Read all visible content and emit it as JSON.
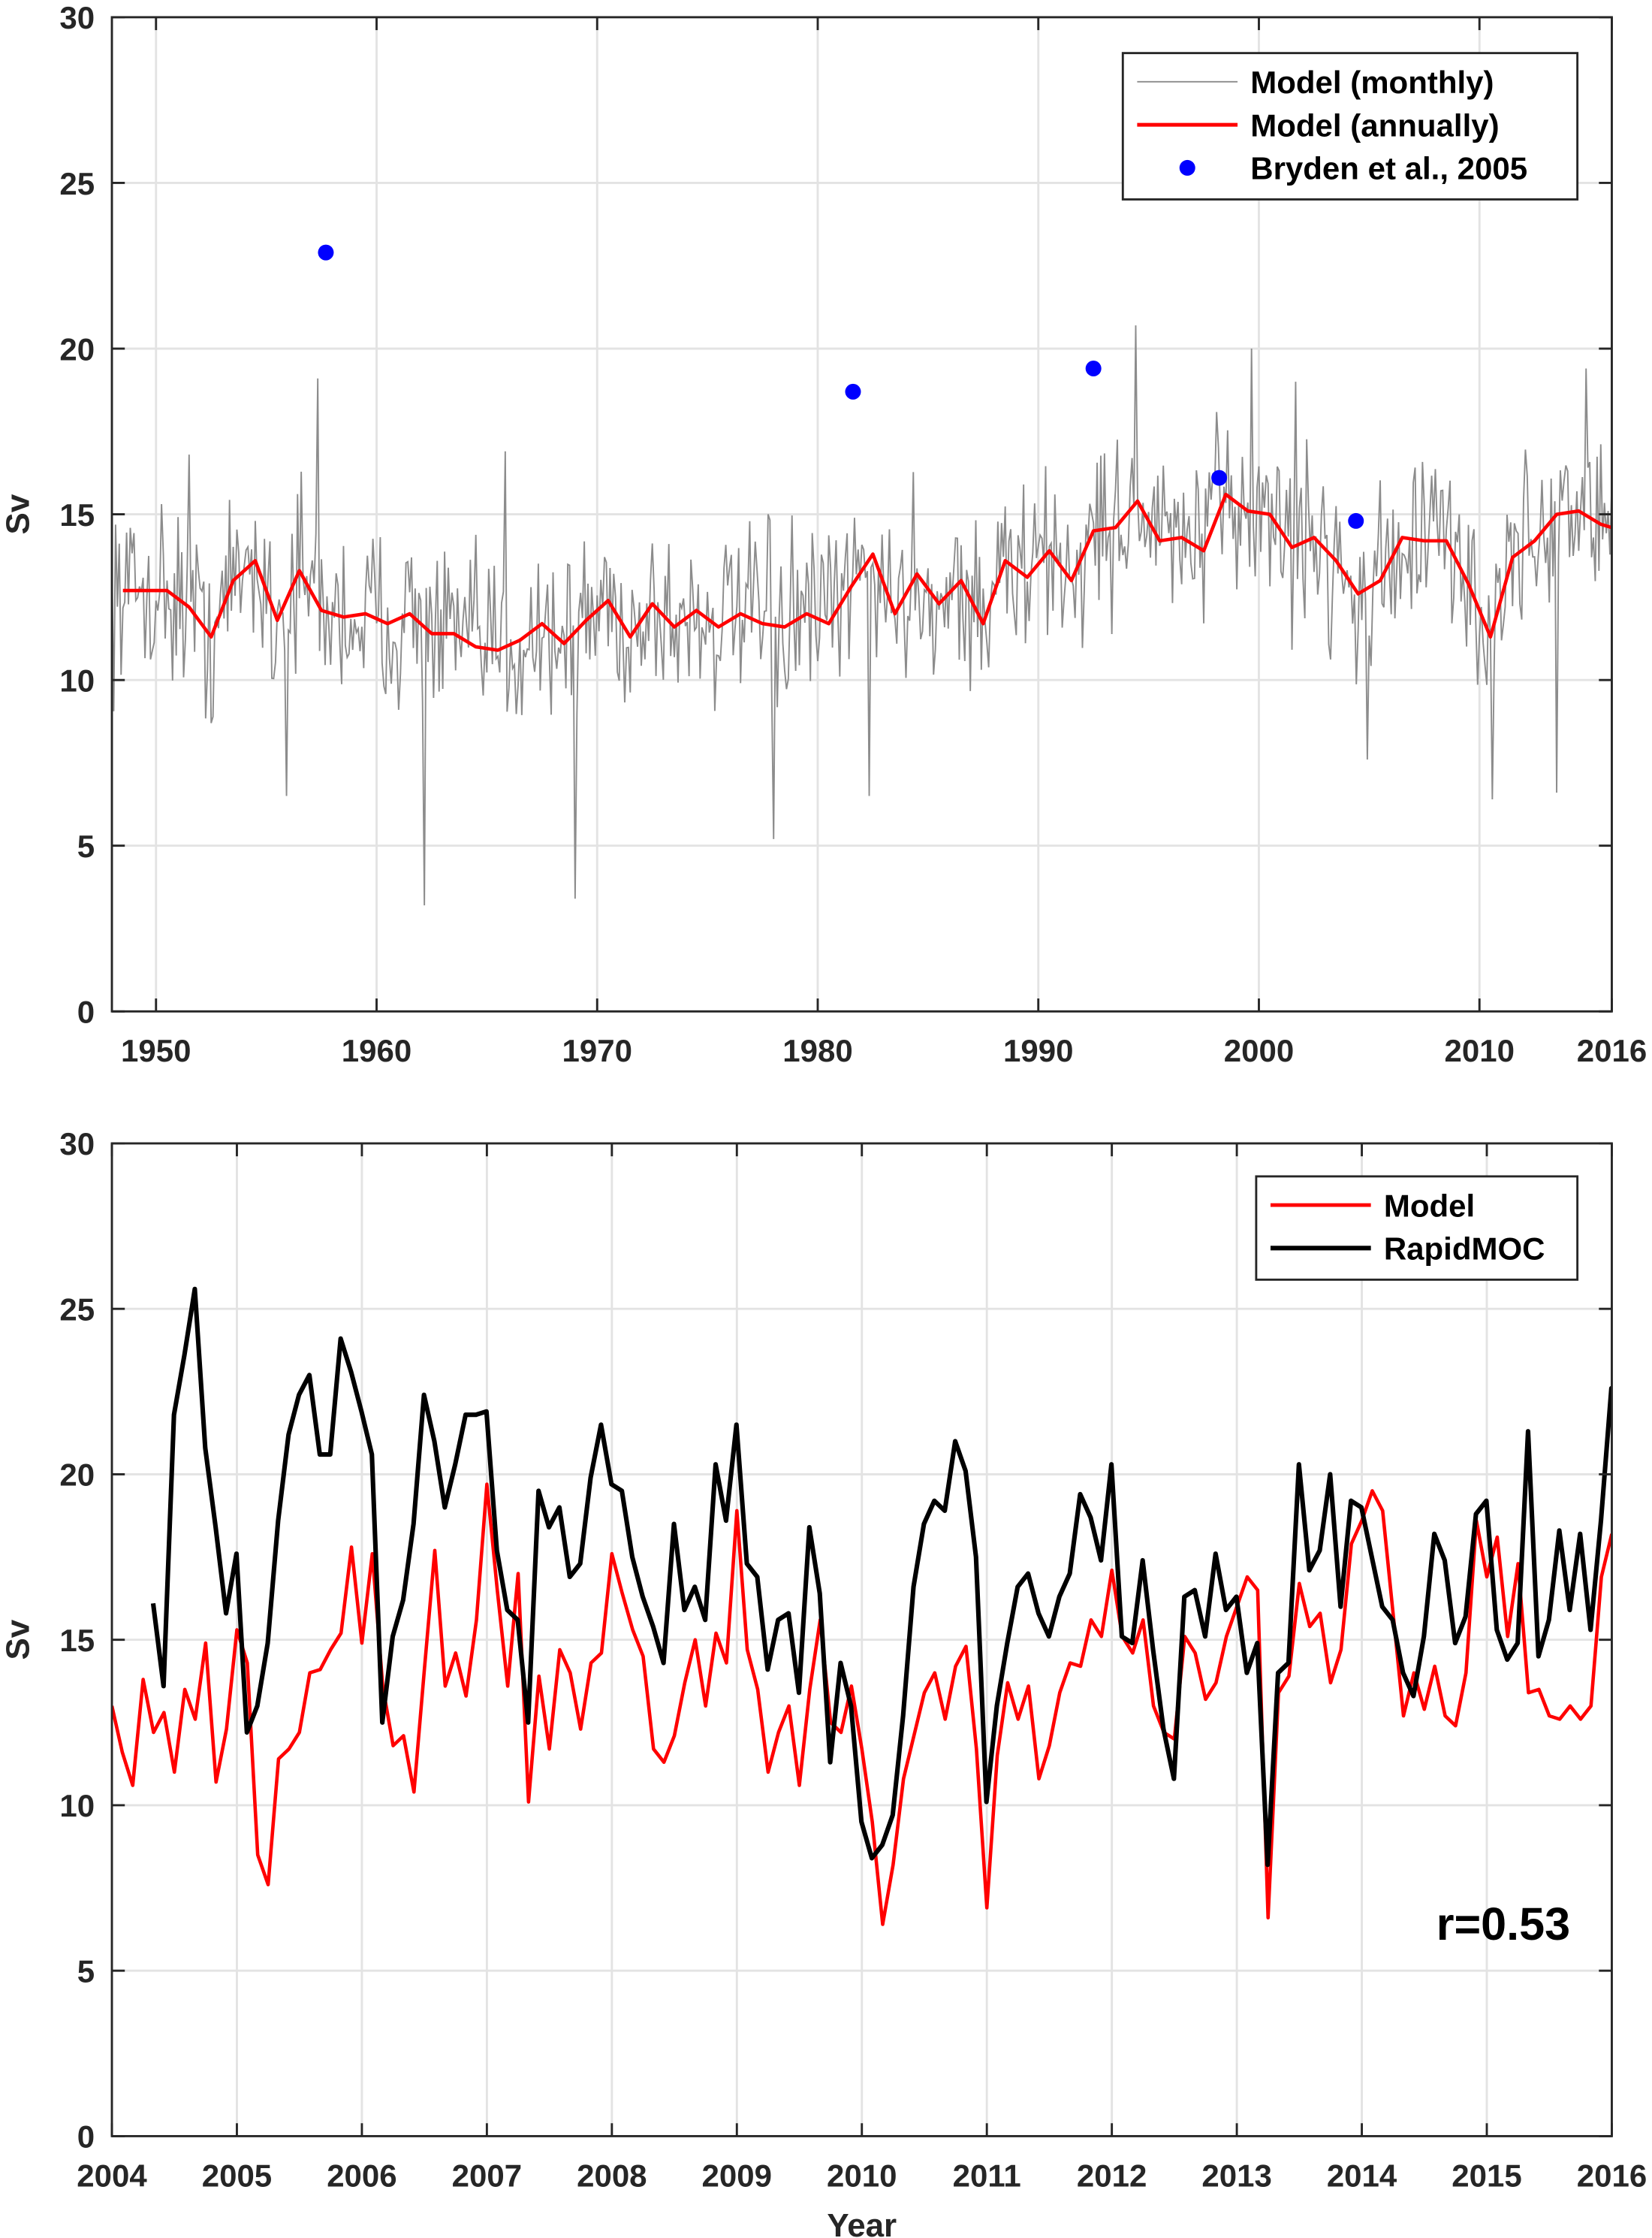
{
  "chart_data": [
    {
      "type": "line",
      "ylabel": "Sv",
      "xlabel": "",
      "xlim": [
        1948,
        2016
      ],
      "ylim": [
        0,
        30
      ],
      "grid": true,
      "xticks": [
        1950,
        1960,
        1970,
        1980,
        1990,
        2000,
        2010,
        2016
      ],
      "xtick_labels": [
        "1950",
        "1960",
        "1970",
        "1980",
        "1990",
        "2000",
        "2010",
        "2016"
      ],
      "yticks": [
        0,
        5,
        10,
        15,
        20,
        25,
        30
      ],
      "ytick_labels": [
        "0",
        "5",
        "10",
        "15",
        "20",
        "25",
        "30"
      ],
      "legend_position": "top-right",
      "series": [
        {
          "name": "Model (monthly)",
          "kind": "line",
          "color": "#8c8c8c",
          "note_values": "monthly variability around annual mean; notable extremes listed",
          "extremes": [
            [
              1957.3,
              19.1
            ],
            [
              1962.2,
              3.2
            ],
            [
              1969.0,
              3.4
            ],
            [
              1978.0,
              5.2
            ],
            [
              1982.3,
              6.5
            ],
            [
              1994.4,
              20.7
            ],
            [
              1999.7,
              20.0
            ],
            [
              2001.7,
              19.0
            ],
            [
              2004.9,
              7.6
            ],
            [
              2010.6,
              6.4
            ],
            [
              2013.5,
              6.6
            ],
            [
              2014.8,
              19.4
            ],
            [
              1965.8,
              16.9
            ],
            [
              1955.9,
              6.5
            ],
            [
              1951.5,
              16.8
            ]
          ]
        },
        {
          "name": "Model (annually)",
          "kind": "line",
          "color": "#ff0000",
          "x": [
            1948.5,
            1949.5,
            1950.5,
            1951.5,
            1952.5,
            1953.5,
            1954.5,
            1955.5,
            1956.5,
            1957.5,
            1958.5,
            1959.5,
            1960.5,
            1961.5,
            1962.5,
            1963.5,
            1964.5,
            1965.5,
            1966.5,
            1967.5,
            1968.5,
            1969.5,
            1970.5,
            1971.5,
            1972.5,
            1973.5,
            1974.5,
            1975.5,
            1976.5,
            1977.5,
            1978.5,
            1979.5,
            1980.5,
            1981.5,
            1982.5,
            1983.5,
            1984.5,
            1985.5,
            1986.5,
            1987.5,
            1988.5,
            1989.5,
            1990.5,
            1991.5,
            1992.5,
            1993.5,
            1994.5,
            1995.5,
            1996.5,
            1997.5,
            1998.5,
            1999.5,
            2000.5,
            2001.5,
            2002.5,
            2003.5,
            2004.5,
            2005.5,
            2006.5,
            2007.5,
            2008.5,
            2009.5,
            2010.5,
            2011.5,
            2012.5,
            2013.5,
            2014.5,
            2015.5,
            2016.0
          ],
          "values": [
            12.7,
            12.7,
            12.7,
            12.2,
            11.3,
            13.0,
            13.6,
            11.8,
            13.3,
            12.1,
            11.9,
            12.0,
            11.7,
            12.0,
            11.4,
            11.4,
            11.0,
            10.9,
            11.2,
            11.7,
            11.1,
            11.8,
            12.4,
            11.3,
            12.3,
            11.6,
            12.1,
            11.6,
            12.0,
            11.7,
            11.6,
            12.0,
            11.7,
            12.8,
            13.8,
            12.0,
            13.2,
            12.3,
            13.0,
            11.7,
            13.6,
            13.1,
            13.9,
            13.0,
            14.5,
            14.6,
            15.4,
            14.2,
            14.3,
            13.9,
            15.6,
            15.1,
            15.0,
            14.0,
            14.3,
            13.6,
            12.6,
            13.0,
            14.3,
            14.2,
            14.2,
            12.9,
            11.3,
            13.7,
            14.2,
            15.0,
            15.1,
            14.7,
            14.6
          ]
        },
        {
          "name": "Bryden et al.,  2005",
          "kind": "scatter",
          "color": "#0000ff",
          "x": [
            1957.7,
            1981.6,
            1992.5,
            1998.2,
            2004.4
          ],
          "values": [
            22.9,
            18.7,
            19.4,
            16.1,
            14.8
          ]
        }
      ]
    },
    {
      "type": "line",
      "ylabel": "Sv",
      "xlabel": "Year",
      "xlim": [
        2004,
        2016
      ],
      "ylim": [
        0,
        30
      ],
      "grid": true,
      "xticks": [
        2004,
        2005,
        2006,
        2007,
        2008,
        2009,
        2010,
        2011,
        2012,
        2013,
        2014,
        2015,
        2016
      ],
      "xtick_labels": [
        "2004",
        "2005",
        "2006",
        "2007",
        "2008",
        "2009",
        "2010",
        "2011",
        "2012",
        "2013",
        "2014",
        "2015",
        "2016"
      ],
      "yticks": [
        0,
        5,
        10,
        15,
        20,
        25,
        30
      ],
      "ytick_labels": [
        "0",
        "5",
        "10",
        "15",
        "20",
        "25",
        "30"
      ],
      "legend_position": "top-right",
      "annotation": "r=0.53",
      "series": [
        {
          "name": "Model",
          "color": "#ff0000",
          "x_start": 2004.0,
          "x_step_months": 1,
          "values": [
            13.0,
            11.6,
            10.6,
            13.8,
            12.2,
            12.8,
            11.0,
            13.5,
            12.6,
            14.9,
            10.7,
            12.3,
            15.3,
            14.3,
            8.5,
            7.6,
            11.4,
            11.7,
            12.2,
            14.0,
            14.1,
            14.7,
            15.2,
            17.8,
            14.9,
            17.6,
            13.6,
            11.8,
            12.1,
            10.4,
            14.1,
            17.7,
            13.6,
            14.6,
            13.3,
            15.6,
            19.7,
            16.5,
            13.6,
            17.0,
            10.1,
            13.9,
            11.7,
            14.7,
            14.0,
            12.3,
            14.3,
            14.6,
            17.6,
            16.4,
            15.3,
            14.5,
            11.7,
            11.3,
            12.1,
            13.7,
            15.0,
            13.0,
            15.2,
            14.3,
            18.9,
            14.7,
            13.5,
            11.0,
            12.2,
            13.0,
            10.6,
            13.5,
            15.6,
            12.5,
            12.2,
            13.6,
            11.7,
            9.5,
            6.4,
            8.2,
            10.8,
            12.1,
            13.4,
            14.0,
            12.6,
            14.2,
            14.8,
            11.7,
            6.9,
            11.5,
            13.7,
            12.6,
            13.6,
            10.8,
            11.8,
            13.4,
            14.3,
            14.2,
            15.6,
            15.1,
            17.1,
            15.1,
            14.6,
            15.6,
            13.0,
            12.2,
            12.0,
            15.1,
            14.6,
            13.2,
            13.7,
            15.1,
            16.0,
            16.9,
            16.5,
            6.6,
            13.4,
            13.9,
            16.7,
            15.4,
            15.8,
            13.7,
            14.7,
            17.9,
            18.6,
            19.5,
            18.9,
            15.8,
            12.7,
            14.0,
            12.9,
            14.2,
            12.7,
            12.4,
            14.0,
            18.6,
            16.9,
            18.1,
            15.1,
            17.3,
            13.4,
            13.5,
            12.7,
            12.6,
            13.0,
            12.6,
            13.0,
            16.9,
            18.2
          ]
        },
        {
          "name": "RapidMOC",
          "color": "#000000",
          "x_start": 2004.33,
          "x_step_months": 1,
          "values": [
            16.1,
            13.6,
            21.8,
            23.6,
            25.6,
            20.8,
            18.4,
            15.8,
            17.6,
            12.2,
            13.0,
            14.9,
            18.6,
            21.2,
            22.4,
            23.0,
            20.6,
            20.6,
            24.1,
            23.1,
            21.9,
            20.6,
            12.5,
            15.1,
            16.2,
            18.5,
            22.4,
            21.0,
            19.0,
            20.3,
            21.8,
            21.8,
            21.9,
            17.7,
            15.9,
            15.6,
            12.5,
            19.5,
            18.4,
            19.0,
            16.9,
            17.3,
            19.9,
            21.5,
            19.7,
            19.5,
            17.5,
            16.3,
            15.4,
            14.3,
            18.5,
            15.9,
            16.6,
            15.6,
            20.3,
            18.6,
            21.5,
            17.3,
            16.9,
            14.1,
            15.6,
            15.8,
            13.4,
            18.4,
            16.4,
            11.3,
            14.3,
            13.0,
            9.5,
            8.4,
            8.8,
            9.7,
            12.7,
            16.6,
            18.5,
            19.2,
            18.9,
            21.0,
            20.1,
            17.5,
            10.1,
            13.0,
            14.9,
            16.6,
            17.0,
            15.8,
            15.1,
            16.3,
            17.0,
            19.4,
            18.7,
            17.4,
            20.3,
            15.1,
            14.9,
            17.4,
            14.7,
            12.3,
            10.8,
            16.3,
            16.5,
            15.1,
            17.6,
            15.9,
            16.3,
            14.0,
            14.9,
            8.2,
            14.0,
            14.3,
            20.3,
            17.1,
            17.7,
            20.0,
            16.0,
            19.2,
            19.0,
            17.5,
            16.0,
            15.6,
            14.0,
            13.3,
            15.1,
            18.2,
            17.4,
            14.9,
            15.7,
            18.8,
            19.2,
            15.3,
            14.4,
            14.9,
            21.3,
            14.5,
            15.6,
            18.3,
            15.9,
            18.2,
            15.3,
            18.6,
            22.6,
            18.6,
            15.9
          ]
        }
      ]
    }
  ]
}
